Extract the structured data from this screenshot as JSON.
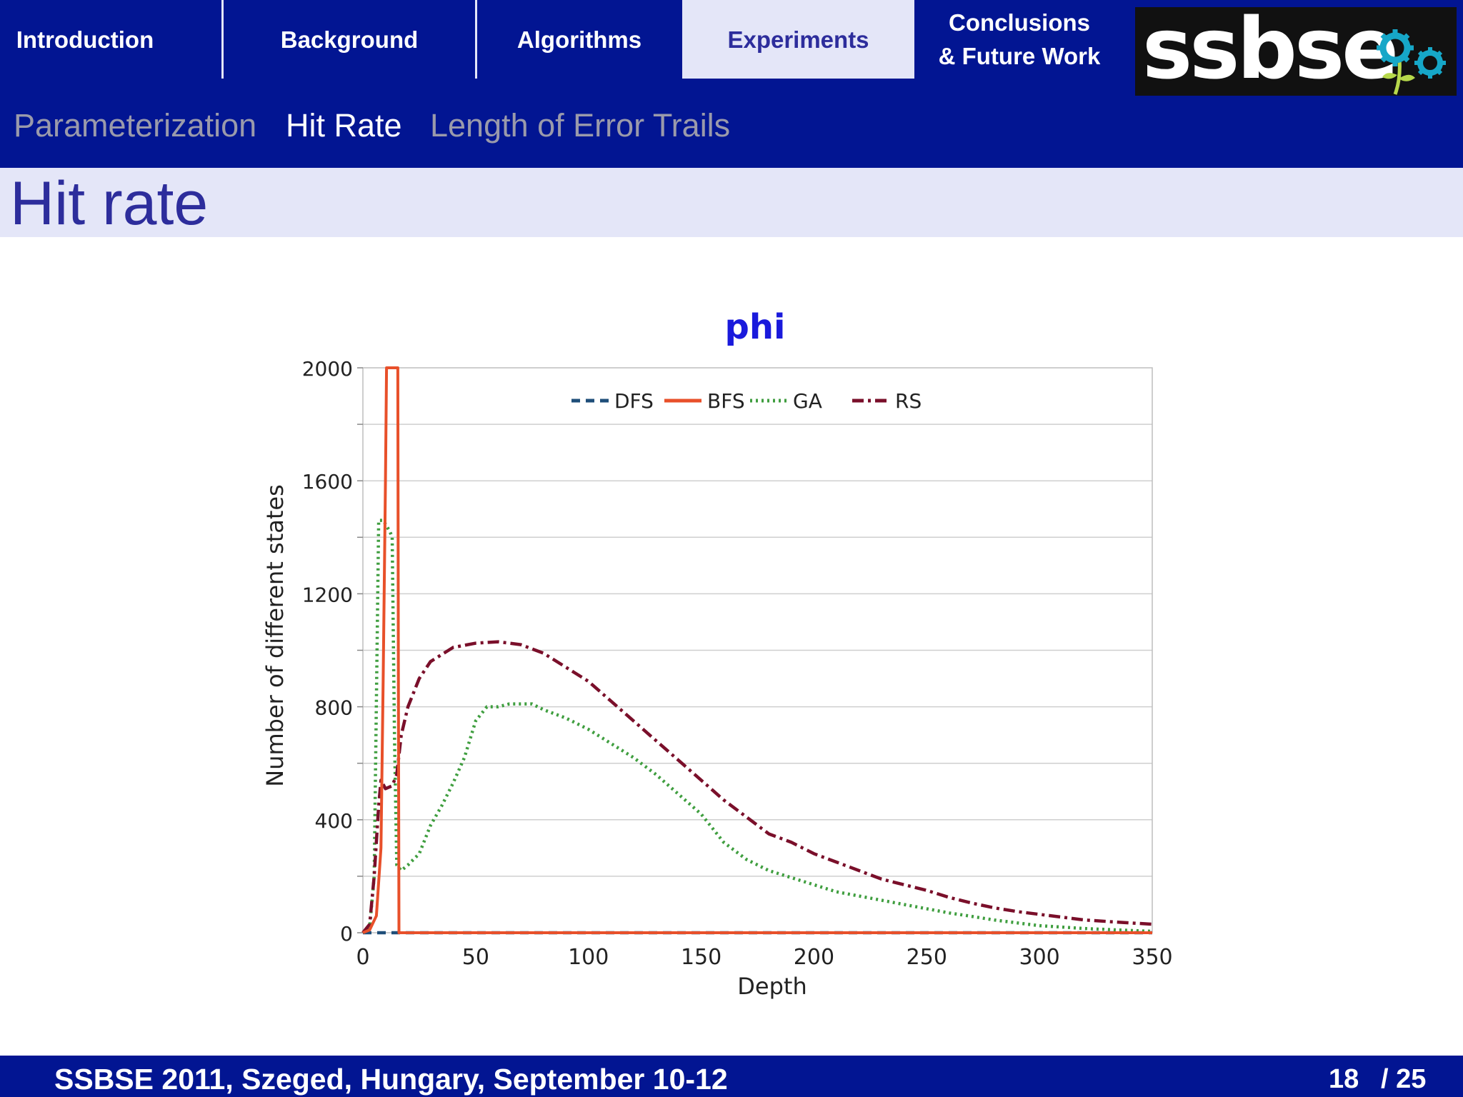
{
  "nav": {
    "items": [
      {
        "label": "Introduction"
      },
      {
        "label": "Background"
      },
      {
        "label": "Algorithms"
      },
      {
        "label": "Experiments"
      },
      {
        "label_line1": "Conclusions",
        "label_line2": "& Future Work"
      }
    ],
    "active": "Experiments"
  },
  "logo": {
    "text": "ssbse"
  },
  "subnav": {
    "items": [
      "Parameterization",
      "Hit Rate",
      "Length of Error Trails"
    ],
    "active": "Hit Rate"
  },
  "slide_title": "Hit rate",
  "footer": {
    "text": "SSBSE 2011, Szeged, Hungary, September 10-12",
    "page": "18",
    "total": "/ 25"
  },
  "colors": {
    "nav_bg": "#021592",
    "active_tab": "#e4e6f8",
    "title": "#2d2d9c",
    "chart_title": "#1a1adc"
  },
  "chart_data": {
    "type": "line",
    "title": "phi",
    "xlabel": "Depth",
    "ylabel": "Number of different states",
    "xlim": [
      0,
      350
    ],
    "ylim": [
      0,
      2000
    ],
    "x_ticks": [
      "0",
      "50",
      "100",
      "150",
      "200",
      "250",
      "300",
      "350"
    ],
    "x_tick_values": [
      0,
      50,
      100,
      150,
      200,
      250,
      300,
      350
    ],
    "y_ticks": [
      "0",
      "400",
      "800",
      "1200",
      "1600",
      "2000"
    ],
    "y_tick_values": [
      0,
      400,
      800,
      1200,
      1600,
      2000
    ],
    "grid": true,
    "legend_position": "top-center",
    "series": [
      {
        "name": "DFS",
        "color": "#1f4e79",
        "style": "dashed",
        "points": [
          [
            0,
            0
          ],
          [
            350,
            0
          ]
        ]
      },
      {
        "name": "BFS",
        "color": "#e8502a",
        "style": "solid",
        "points": [
          [
            0,
            0
          ],
          [
            3,
            10
          ],
          [
            6,
            60
          ],
          [
            8,
            300
          ],
          [
            9,
            900
          ],
          [
            10,
            1600
          ],
          [
            10.5,
            2000
          ],
          [
            15.5,
            2000
          ],
          [
            15.7,
            1000
          ],
          [
            16,
            0
          ],
          [
            350,
            0
          ]
        ]
      },
      {
        "name": "GA",
        "color": "#3f9e3f",
        "style": "dotted",
        "points": [
          [
            0,
            0
          ],
          [
            3,
            20
          ],
          [
            5,
            200
          ],
          [
            7,
            1460
          ],
          [
            9,
            1460
          ],
          [
            12,
            1420
          ],
          [
            13,
            1400
          ],
          [
            14,
            700
          ],
          [
            15,
            240
          ],
          [
            17,
            220
          ],
          [
            20,
            240
          ],
          [
            25,
            280
          ],
          [
            30,
            380
          ],
          [
            35,
            450
          ],
          [
            40,
            530
          ],
          [
            45,
            620
          ],
          [
            50,
            750
          ],
          [
            55,
            800
          ],
          [
            60,
            800
          ],
          [
            65,
            810
          ],
          [
            75,
            810
          ],
          [
            80,
            790
          ],
          [
            90,
            760
          ],
          [
            100,
            720
          ],
          [
            110,
            670
          ],
          [
            120,
            620
          ],
          [
            130,
            560
          ],
          [
            140,
            490
          ],
          [
            150,
            420
          ],
          [
            160,
            320
          ],
          [
            170,
            260
          ],
          [
            180,
            220
          ],
          [
            190,
            195
          ],
          [
            200,
            170
          ],
          [
            210,
            145
          ],
          [
            220,
            130
          ],
          [
            230,
            115
          ],
          [
            240,
            100
          ],
          [
            250,
            85
          ],
          [
            260,
            70
          ],
          [
            270,
            58
          ],
          [
            280,
            45
          ],
          [
            290,
            35
          ],
          [
            300,
            25
          ],
          [
            320,
            15
          ],
          [
            340,
            8
          ],
          [
            350,
            5
          ]
        ]
      },
      {
        "name": "RS",
        "color": "#7a0f2a",
        "style": "dashdot",
        "points": [
          [
            0,
            0
          ],
          [
            3,
            30
          ],
          [
            5,
            200
          ],
          [
            7,
            450
          ],
          [
            8,
            540
          ],
          [
            10,
            510
          ],
          [
            13,
            520
          ],
          [
            15,
            560
          ],
          [
            17,
            700
          ],
          [
            20,
            800
          ],
          [
            25,
            900
          ],
          [
            30,
            960
          ],
          [
            40,
            1010
          ],
          [
            50,
            1025
          ],
          [
            60,
            1030
          ],
          [
            70,
            1020
          ],
          [
            80,
            990
          ],
          [
            90,
            940
          ],
          [
            100,
            890
          ],
          [
            110,
            820
          ],
          [
            120,
            750
          ],
          [
            130,
            680
          ],
          [
            140,
            610
          ],
          [
            150,
            540
          ],
          [
            160,
            470
          ],
          [
            170,
            410
          ],
          [
            180,
            350
          ],
          [
            190,
            320
          ],
          [
            200,
            280
          ],
          [
            210,
            250
          ],
          [
            220,
            220
          ],
          [
            230,
            190
          ],
          [
            240,
            170
          ],
          [
            250,
            150
          ],
          [
            260,
            125
          ],
          [
            270,
            105
          ],
          [
            280,
            88
          ],
          [
            290,
            75
          ],
          [
            300,
            65
          ],
          [
            310,
            55
          ],
          [
            320,
            45
          ],
          [
            330,
            40
          ],
          [
            340,
            35
          ],
          [
            350,
            30
          ]
        ]
      }
    ]
  }
}
